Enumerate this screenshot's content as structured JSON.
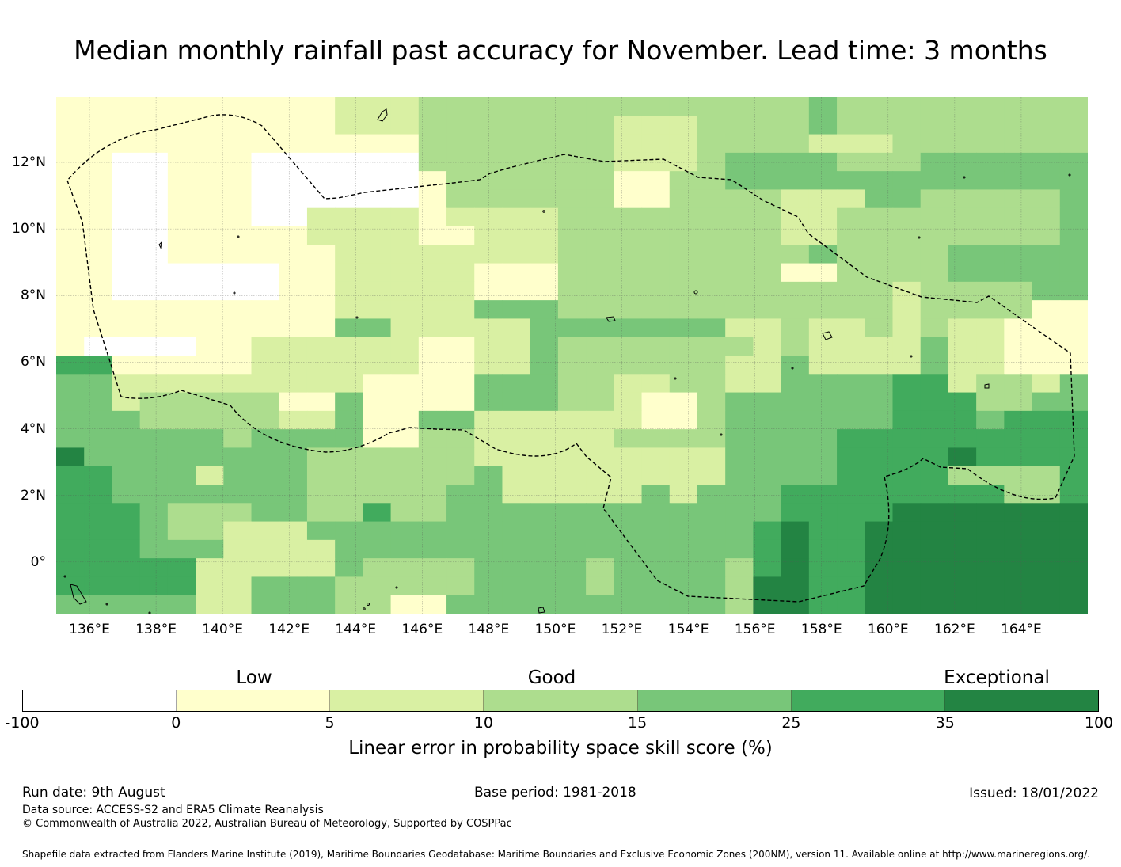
{
  "title": "Median monthly rainfall past accuracy for November. Lead time: 3 months",
  "map": {
    "lon_range_deg": [
      135,
      166
    ],
    "lat_range_deg": [
      -1.55,
      13.95
    ],
    "lon_ticks": [
      "136°E",
      "138°E",
      "140°E",
      "142°E",
      "144°E",
      "146°E",
      "148°E",
      "150°E",
      "152°E",
      "154°E",
      "156°E",
      "158°E",
      "160°E",
      "162°E",
      "164°E"
    ],
    "lat_ticks": [
      "12°N",
      "10°N",
      "8°N",
      "6°N",
      "4°N",
      "2°N",
      "0°"
    ],
    "boundary_style": "dashed black",
    "gridlines": true
  },
  "colorbar": {
    "categories": [
      "Low",
      "Good",
      "Exceptional"
    ],
    "ticks": [
      "-100",
      "0",
      "5",
      "10",
      "15",
      "25",
      "35",
      "100"
    ],
    "label": "Linear error in probability space skill score (%)",
    "bins": [
      {
        "range": "-100 to 0",
        "color": "#ffffff"
      },
      {
        "range": "0 to 5",
        "color": "#ffffcc"
      },
      {
        "range": "5 to 10",
        "color": "#d9f0a3"
      },
      {
        "range": "10 to 15",
        "color": "#addd8e"
      },
      {
        "range": "15 to 25",
        "color": "#78c679"
      },
      {
        "range": "25 to 35",
        "color": "#41ab5d"
      },
      {
        "range": "35 to 100",
        "color": "#238443"
      }
    ]
  },
  "footer": {
    "run_date": "Run date: 9th August",
    "base_period": "Base period: 1981-2018",
    "issued": "Issued: 18/01/2022",
    "data_source": "Data source: ACCESS-S2 and ERA5 Climate Reanalysis",
    "copyright": "© Commonwealth of Australia 2022, Australian Bureau of Meteorology, Supported by COSPPac",
    "shapefile": "Shapefile data extracted from Flanders Marine Institute (2019), Maritime Boundaries Geodatabase: Maritime Boundaries and Exclusive Economic Zones (200NM), version 11. Available online at http://www.marineregions.org/."
  }
}
